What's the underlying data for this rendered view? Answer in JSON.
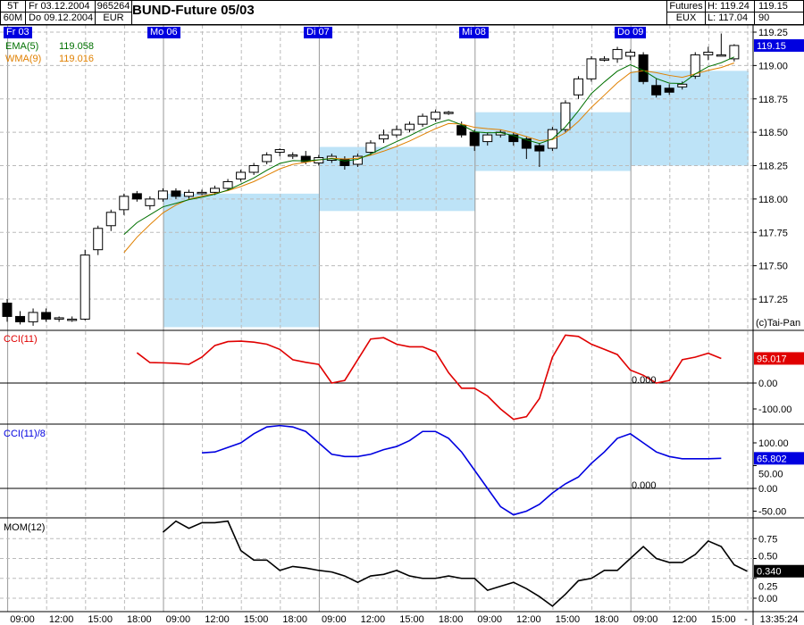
{
  "header": {
    "period": "5T",
    "interval": "60M",
    "from": "Fr 03.12.2004",
    "to": "Do 09.12.2004",
    "code": "965264",
    "currency": "EUR",
    "title": "BUND-Future 05/03",
    "type": "Futures",
    "exchange": "EUX",
    "high": "H: 119.24",
    "low": "L: 117.04",
    "last": "119.15",
    "num": "90"
  },
  "days": [
    "Fr 03",
    "Mo 06",
    "Di 07",
    "Mi 08",
    "Do 09"
  ],
  "legend": {
    "ema_label": "EMA(5)",
    "ema_value": "119.058",
    "wma_label": "WMA(9)",
    "wma_value": "119.016"
  },
  "copyright": "(c)Tai-Pan",
  "colors": {
    "ema": "#007000",
    "wma": "#e08000",
    "cci": "#e00000",
    "cci8": "#0000e0",
    "mom": "#000000",
    "box": "#bde3f7",
    "marker": "#0000e0"
  },
  "price_axis": [
    "119.25",
    "119.00",
    "118.75",
    "118.50",
    "118.25",
    "118.00",
    "117.75",
    "117.50",
    "117.25"
  ],
  "price_marker": "119.15",
  "cci": {
    "label": "CCI(11)",
    "value": "95.017",
    "zero": "0.000",
    "axis": [
      "0.00",
      "-100.00"
    ],
    "values": [
      117,
      79,
      78,
      76,
      72,
      100,
      145,
      160,
      162,
      158,
      150,
      130,
      90,
      80,
      72,
      0,
      10,
      90,
      170,
      175,
      150,
      140,
      140,
      120,
      40,
      -20,
      -20,
      -50,
      -100,
      -140,
      -130,
      -60,
      100,
      185,
      180,
      150,
      130,
      110,
      50,
      30,
      0,
      10,
      90,
      100,
      115,
      95
    ]
  },
  "cci8": {
    "label": "CCI(11)/8",
    "value": "65.802",
    "zero": "0.000",
    "axis": [
      "100.00",
      "50.00",
      "0.00",
      "-50.00"
    ],
    "values": [
      78,
      80,
      90,
      100,
      120,
      135,
      138,
      135,
      125,
      100,
      75,
      70,
      70,
      75,
      85,
      92,
      105,
      125,
      125,
      110,
      80,
      40,
      0,
      -40,
      -58,
      -50,
      -35,
      -10,
      10,
      25,
      55,
      80,
      110,
      120,
      100,
      80,
      70,
      65,
      65,
      65,
      66
    ]
  },
  "mom": {
    "label": "MOM(12)",
    "value": "0.340",
    "axis": [
      "0.75",
      "0.50",
      "0.25",
      "0.00"
    ],
    "values": [
      0.83,
      0.97,
      0.88,
      0.95,
      0.95,
      0.97,
      0.6,
      0.48,
      0.48,
      0.35,
      0.4,
      0.38,
      0.35,
      0.33,
      0.28,
      0.2,
      0.28,
      0.3,
      0.35,
      0.28,
      0.25,
      0.25,
      0.28,
      0.25,
      0.25,
      0.1,
      0.15,
      0.2,
      0.12,
      0.02,
      -0.1,
      0.05,
      0.22,
      0.25,
      0.35,
      0.35,
      0.5,
      0.65,
      0.5,
      0.45,
      0.45,
      0.55,
      0.72,
      0.65,
      0.42,
      0.34
    ]
  },
  "time_axis": [
    "09:00",
    "12:00",
    "15:00",
    "18:00",
    "09:00",
    "12:00",
    "15:00",
    "18:00",
    "09:00",
    "12:00",
    "15:00",
    "18:00",
    "09:00",
    "12:00",
    "15:00",
    "18:00",
    "09:00",
    "12:00",
    "15:00",
    "-"
  ],
  "clock": "13:35:24",
  "pivot_boxes": [
    [
      118.04,
      117.04
    ],
    [
      118.39,
      117.91
    ],
    [
      118.65,
      118.21
    ],
    [
      118.96,
      118.25
    ]
  ],
  "candles": [
    [
      117.22,
      117.25,
      117.08,
      117.12
    ],
    [
      117.12,
      117.16,
      117.06,
      117.08
    ],
    [
      117.08,
      117.18,
      117.05,
      117.15
    ],
    [
      117.15,
      117.18,
      117.08,
      117.1
    ],
    [
      117.1,
      117.12,
      117.08,
      117.11
    ],
    [
      117.1,
      117.12,
      117.08,
      117.1
    ],
    [
      117.1,
      117.62,
      117.09,
      117.58
    ],
    [
      117.62,
      117.8,
      117.58,
      117.78
    ],
    [
      117.8,
      117.92,
      117.76,
      117.9
    ],
    [
      117.92,
      118.04,
      117.88,
      118.02
    ],
    [
      118.04,
      118.06,
      117.98,
      118.0
    ],
    [
      117.95,
      118.02,
      117.92,
      118.0
    ],
    [
      118.0,
      118.08,
      117.98,
      118.06
    ],
    [
      118.06,
      118.08,
      118.0,
      118.02
    ],
    [
      118.02,
      118.07,
      118.0,
      118.05
    ],
    [
      118.05,
      118.07,
      118.03,
      118.05
    ],
    [
      118.05,
      118.1,
      118.03,
      118.08
    ],
    [
      118.08,
      118.15,
      118.06,
      118.13
    ],
    [
      118.15,
      118.22,
      118.13,
      118.2
    ],
    [
      118.2,
      118.27,
      118.18,
      118.25
    ],
    [
      118.28,
      118.35,
      118.26,
      118.33
    ],
    [
      118.35,
      118.38,
      118.32,
      118.37
    ],
    [
      118.33,
      118.35,
      118.3,
      118.33
    ],
    [
      118.32,
      118.36,
      118.26,
      118.28
    ],
    [
      118.27,
      118.33,
      118.25,
      118.31
    ],
    [
      118.29,
      118.34,
      118.27,
      118.32
    ],
    [
      118.3,
      118.32,
      118.22,
      118.25
    ],
    [
      118.26,
      118.34,
      118.24,
      118.32
    ],
    [
      118.35,
      118.44,
      118.33,
      118.42
    ],
    [
      118.45,
      118.52,
      118.42,
      118.48
    ],
    [
      118.48,
      118.55,
      118.46,
      118.52
    ],
    [
      118.52,
      118.58,
      118.5,
      118.56
    ],
    [
      118.56,
      118.64,
      118.54,
      118.62
    ],
    [
      118.6,
      118.67,
      118.58,
      118.65
    ],
    [
      118.64,
      118.66,
      118.63,
      118.65
    ],
    [
      118.55,
      118.58,
      118.46,
      118.48
    ],
    [
      118.5,
      118.52,
      118.36,
      118.4
    ],
    [
      118.43,
      118.5,
      118.4,
      118.48
    ],
    [
      118.48,
      118.52,
      118.46,
      118.5
    ],
    [
      118.48,
      118.5,
      118.4,
      118.43
    ],
    [
      118.45,
      118.47,
      118.3,
      118.38
    ],
    [
      118.4,
      118.42,
      118.24,
      118.36
    ],
    [
      118.38,
      118.54,
      118.36,
      118.52
    ],
    [
      118.52,
      118.74,
      118.5,
      118.72
    ],
    [
      118.78,
      118.92,
      118.75,
      118.9
    ],
    [
      118.9,
      119.07,
      118.88,
      119.05
    ],
    [
      119.05,
      119.07,
      119.03,
      119.05
    ],
    [
      119.05,
      119.14,
      119.02,
      119.12
    ],
    [
      119.07,
      119.12,
      119.04,
      119.1
    ],
    [
      119.08,
      119.1,
      118.86,
      118.88
    ],
    [
      118.85,
      118.9,
      118.76,
      118.78
    ],
    [
      118.83,
      118.86,
      118.78,
      118.8
    ],
    [
      118.84,
      118.88,
      118.82,
      118.86
    ],
    [
      118.92,
      119.1,
      118.9,
      119.08
    ],
    [
      119.08,
      119.14,
      119.04,
      119.1
    ],
    [
      119.08,
      119.24,
      119.07,
      119.08
    ],
    [
      119.05,
      119.16,
      119.03,
      119.15
    ]
  ]
}
